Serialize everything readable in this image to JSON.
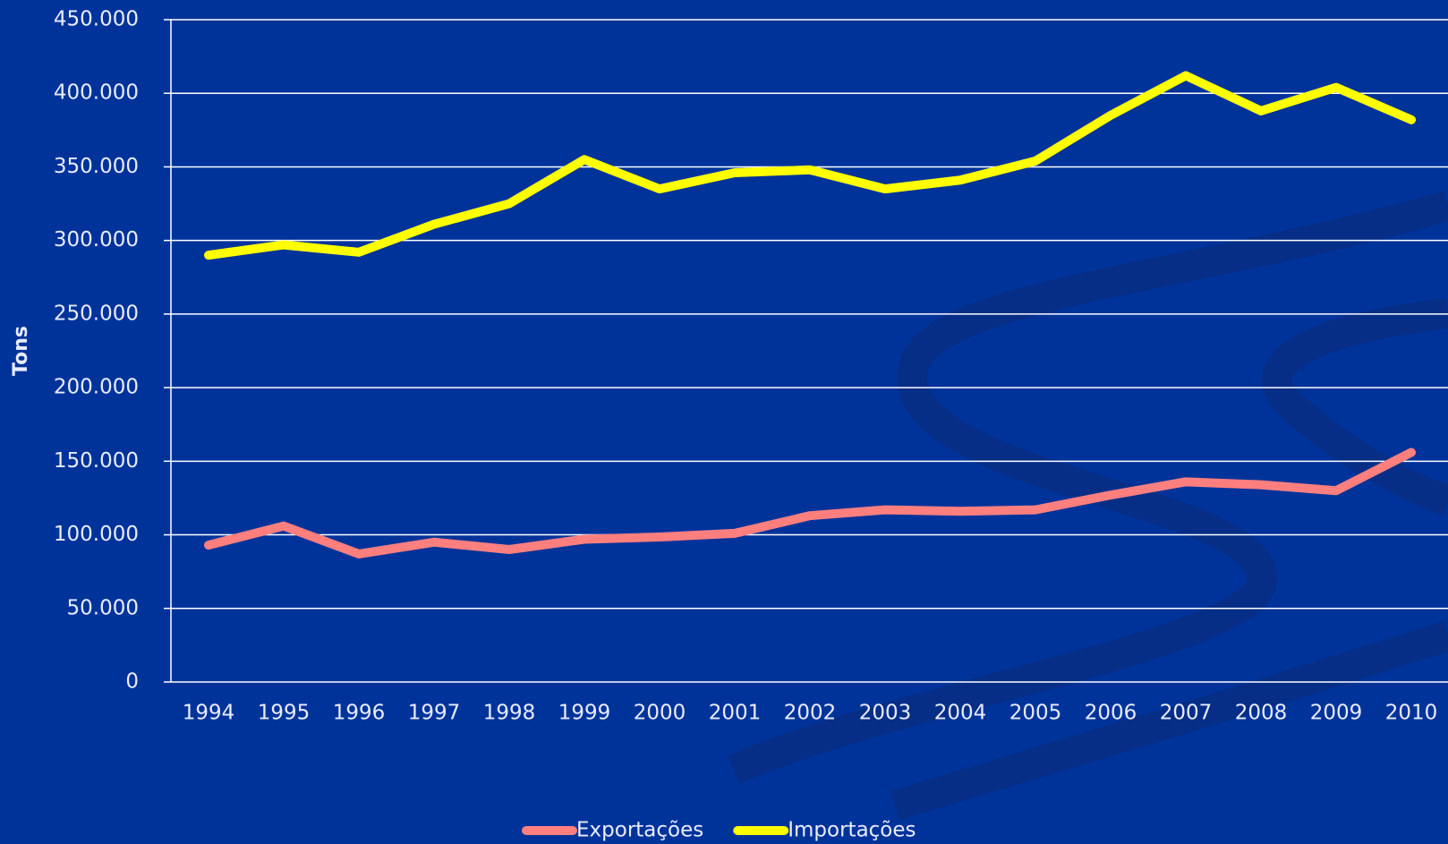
{
  "chart_data": {
    "type": "line",
    "y_label": "Tons",
    "categories": [
      "1994",
      "1995",
      "1996",
      "1997",
      "1998",
      "1999",
      "2000",
      "2001",
      "2002",
      "2003",
      "2004",
      "2005",
      "2006",
      "2007",
      "2008",
      "2009",
      "2010"
    ],
    "series": [
      {
        "name": "Exportações",
        "color": "#ff7f7f",
        "values": [
          93000,
          106000,
          87000,
          95000,
          90000,
          97000,
          98500,
          101000,
          113000,
          117000,
          116000,
          117000,
          127000,
          136000,
          134000,
          130000,
          156000
        ]
      },
      {
        "name": "Importações",
        "color": "#ffff00",
        "values": [
          290000,
          297000,
          292000,
          311000,
          325000,
          355000,
          335000,
          346000,
          348000,
          335000,
          341000,
          354000,
          385000,
          412000,
          388000,
          404000,
          382000
        ]
      }
    ],
    "ylim": [
      0,
      450000
    ],
    "yticks": [
      {
        "value": 0,
        "label": "0"
      },
      {
        "value": 50000,
        "label": "50.000"
      },
      {
        "value": 100000,
        "label": "100.000"
      },
      {
        "value": 150000,
        "label": "150.000"
      },
      {
        "value": 200000,
        "label": "200.000"
      },
      {
        "value": 250000,
        "label": "250.000"
      },
      {
        "value": 300000,
        "label": "300.000"
      },
      {
        "value": 350000,
        "label": "350.000"
      },
      {
        "value": 400000,
        "label": "400.000"
      },
      {
        "value": 450000,
        "label": "450.000"
      }
    ],
    "grid": true,
    "legend": "bottom"
  }
}
